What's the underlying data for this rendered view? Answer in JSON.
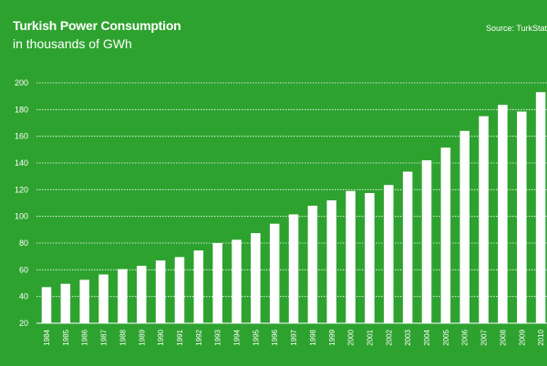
{
  "header": {
    "title": "Turkish Power Consumption",
    "subtitle": "in thousands of GWh",
    "source": "Source: TurkStat"
  },
  "colors": {
    "background": "#2ea22f",
    "bar": "#ffffff",
    "gridline": "#ffffff",
    "text": "#ffffff"
  },
  "chart_data": {
    "type": "bar",
    "title": "Turkish Power Consumption",
    "subtitle": "in thousands of GWh",
    "xlabel": "",
    "ylabel": "",
    "ylim": [
      20,
      200
    ],
    "yticks": [
      20,
      40,
      60,
      80,
      100,
      120,
      140,
      160,
      180,
      200
    ],
    "grid": true,
    "legend": "none",
    "categories": [
      "1984",
      "1985",
      "1986",
      "1987",
      "1988",
      "1989",
      "1990",
      "1991",
      "1992",
      "1993",
      "1994",
      "1995",
      "1996",
      "1997",
      "1998",
      "1999",
      "2000",
      "2001",
      "2002",
      "2003",
      "2004",
      "2005",
      "2006",
      "2007",
      "2008",
      "2009",
      "2010"
    ],
    "values": [
      47,
      49.5,
      52.5,
      56.5,
      60.5,
      63,
      67,
      69.5,
      74.5,
      80,
      82.5,
      87.5,
      94.5,
      101.5,
      108,
      112,
      119,
      117.5,
      123.5,
      133.5,
      142,
      151.5,
      164,
      175,
      183.5,
      178.5,
      193
    ]
  }
}
